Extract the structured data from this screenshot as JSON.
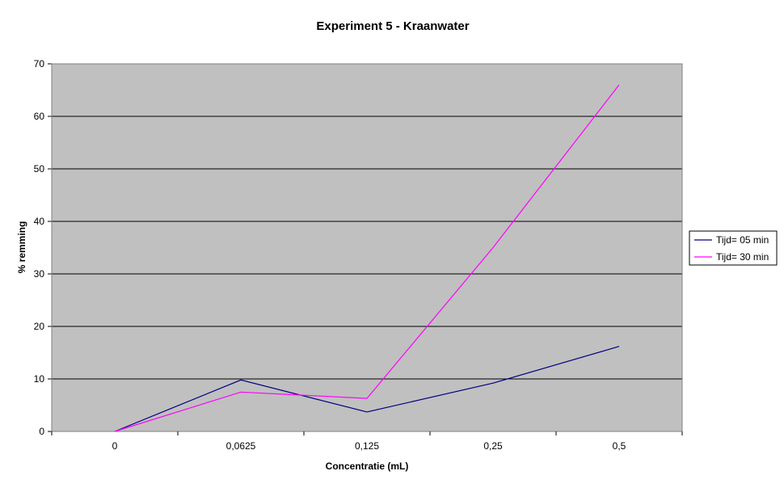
{
  "chart_data": {
    "type": "line",
    "title": "Experiment 5 - Kraanwater",
    "xlabel": "Concentratie (mL)",
    "ylabel": "% remming",
    "categories": [
      "0",
      "0,0625",
      "0,125",
      "0,25",
      "0,5"
    ],
    "ylim": [
      0,
      70
    ],
    "yticks": [
      0,
      10,
      20,
      30,
      40,
      50,
      60,
      70
    ],
    "grid": true,
    "legend_position": "right",
    "plot_background": "#c0c0c0",
    "series": [
      {
        "name": "Tijd= 05 min",
        "color": "#000080",
        "values": [
          0,
          9.8,
          3.7,
          9.2,
          16.2
        ]
      },
      {
        "name": "Tijd= 30 min",
        "color": "#ff00ff",
        "values": [
          0,
          7.5,
          6.3,
          35.0,
          66.0
        ]
      }
    ]
  }
}
